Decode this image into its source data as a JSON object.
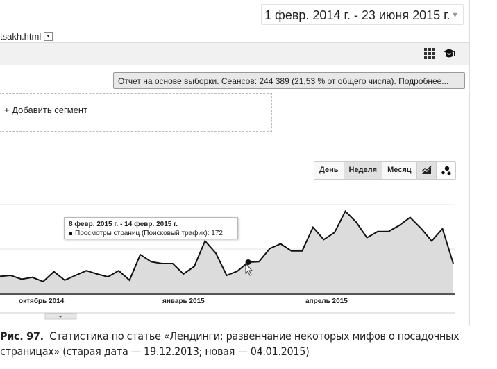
{
  "header": {
    "date_range": "1 февр. 2014 г. - 23 июня 2015 г.",
    "page_file": "tsakh.html"
  },
  "toolbar": {
    "icons": [
      "grid-icon",
      "graduation-cap-icon"
    ]
  },
  "sampling_notice": "Отчет на основе выборки. Сеансов: 244 389 (21,53 % от общего числа). Подробнее...",
  "segment": {
    "add_label": "+ Добавить сегмент"
  },
  "granularity": {
    "options": [
      "День",
      "Неделя",
      "Месяц"
    ],
    "selected": "Неделя"
  },
  "chart_modes": [
    "line-chart-icon",
    "motion-chart-icon"
  ],
  "colors": {
    "line": "#111111",
    "fill": "#dcdcdc"
  },
  "chart_data": {
    "type": "area",
    "x_tick_labels": [
      "октябрь 2014",
      "январь 2015",
      "апрель 2015"
    ],
    "series": [
      {
        "name": "Просмотры страниц (Поисковый трафик)",
        "values": [
          142,
          144,
          136,
          140,
          131,
          152,
          134,
          144,
          154,
          147,
          141,
          154,
          134,
          188,
          173,
          169,
          169,
          147,
          163,
          217,
          191,
          144,
          153,
          172,
          173,
          201,
          211,
          196,
          196,
          246,
          220,
          235,
          280,
          257,
          224,
          237,
          237,
          250,
          267,
          244,
          217,
          243,
          169
        ]
      }
    ],
    "highlight_index": 23,
    "tooltip": {
      "title": "8 февр. 2015 г. - 14 февр. 2015 г.",
      "label": "Просмотры страниц (Поисковый трафик): 172"
    }
  },
  "caption": {
    "label": "Рис. 97.",
    "line1": "Статистика по статье «Лендинги: развенчание некоторых мифов о посадочных",
    "line2": "страницах» (старая дата — 19.12.2013; новая — 04.01.2015)"
  }
}
